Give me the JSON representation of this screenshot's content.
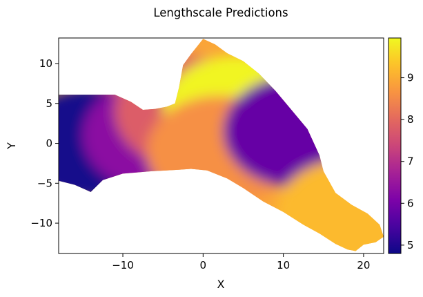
{
  "chart_data": {
    "type": "heatmap",
    "title": "Lengthscale Predictions",
    "xlabel": "X",
    "ylabel": "Y",
    "xlim": [
      -18,
      22.5
    ],
    "ylim": [
      -13.8,
      13.2
    ],
    "x_ticks": [
      -10,
      0,
      10,
      20
    ],
    "x_tick_labels": [
      "−10",
      "0",
      "10",
      "20"
    ],
    "y_ticks": [
      -10,
      -5,
      0,
      5,
      10
    ],
    "y_tick_labels": [
      "−10",
      "−5",
      "0",
      "5",
      "10"
    ],
    "colormap": "plasma",
    "colorbar": {
      "range": [
        4.8,
        9.95
      ],
      "ticks": [
        5,
        6,
        7,
        8,
        9
      ],
      "tick_labels": [
        "5",
        "6",
        "7",
        "8",
        "9"
      ]
    },
    "grid": false,
    "region_outline": [
      [
        -18,
        6.1
      ],
      [
        -11,
        6.1
      ],
      [
        -9,
        5.2
      ],
      [
        -7.5,
        4.2
      ],
      [
        -6,
        4.3
      ],
      [
        -4.5,
        4.6
      ],
      [
        -3.5,
        5.0
      ],
      [
        -3,
        7
      ],
      [
        -2.5,
        9.8
      ],
      [
        -1.5,
        11.2
      ],
      [
        0,
        13.1
      ],
      [
        1.5,
        12.4
      ],
      [
        3,
        11.3
      ],
      [
        5,
        10.3
      ],
      [
        7,
        8.7
      ],
      [
        9,
        6.6
      ],
      [
        11,
        4.2
      ],
      [
        13,
        1.8
      ],
      [
        14.5,
        -1.5
      ],
      [
        15,
        -3.5
      ],
      [
        16.5,
        -6.2
      ],
      [
        18.5,
        -7.7
      ],
      [
        20.5,
        -8.8
      ],
      [
        22,
        -10.2
      ],
      [
        22.5,
        -11.7
      ],
      [
        21.5,
        -12.4
      ],
      [
        20,
        -12.7
      ],
      [
        19,
        -13.5
      ],
      [
        18,
        -13.3
      ],
      [
        16.5,
        -12.6
      ],
      [
        14.5,
        -11.3
      ],
      [
        12.5,
        -10.2
      ],
      [
        10,
        -8.6
      ],
      [
        7.5,
        -7.3
      ],
      [
        5,
        -5.6
      ],
      [
        3,
        -4.4
      ],
      [
        0.5,
        -3.4
      ],
      [
        -1.5,
        -3.2
      ],
      [
        -3,
        -3.3
      ],
      [
        -6.5,
        -3.5
      ],
      [
        -10,
        -3.8
      ],
      [
        -12.5,
        -4.6
      ],
      [
        -13.5,
        -5.6
      ],
      [
        -14,
        -6.1
      ],
      [
        -16,
        -5.2
      ],
      [
        -18,
        -4.7
      ]
    ],
    "notable_regions": [
      {
        "center": [
          -14,
          0
        ],
        "value": 4.9
      },
      {
        "center": [
          -6,
          1
        ],
        "value": 6.3
      },
      {
        "center": [
          -2,
          4
        ],
        "value": 7.8
      },
      {
        "center": [
          4,
          4
        ],
        "value": 9.9
      },
      {
        "center": [
          2,
          -1
        ],
        "value": 8.6
      },
      {
        "center": [
          11.5,
          1.5
        ],
        "value": 5.8
      },
      {
        "center": [
          18,
          -9
        ],
        "value": 9.2
      }
    ]
  }
}
